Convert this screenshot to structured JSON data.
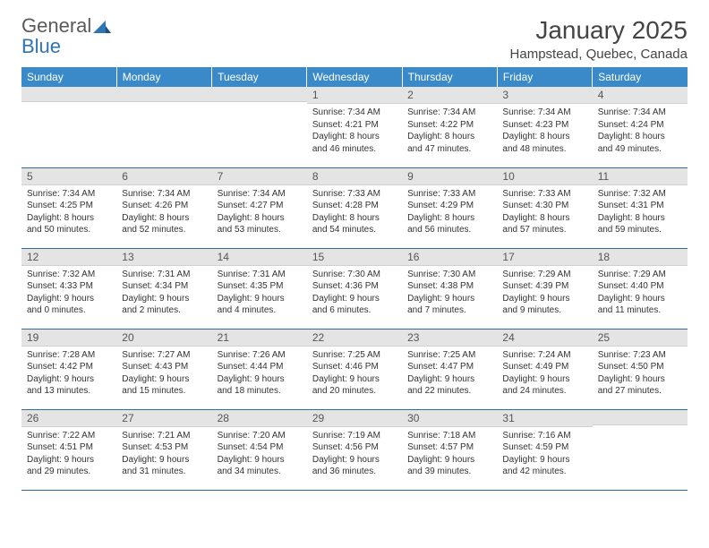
{
  "logo": {
    "word1": "General",
    "word2": "Blue"
  },
  "title": "January 2025",
  "location": "Hampstead, Quebec, Canada",
  "colors": {
    "header_bg": "#3a8ac9",
    "header_text": "#ffffff",
    "daynum_bg": "#e4e4e4",
    "row_border": "#2e6ca3",
    "body_text": "#333333",
    "page_bg": "#ffffff"
  },
  "typography": {
    "title_fontsize": 28,
    "location_fontsize": 15,
    "weekday_fontsize": 12,
    "daynum_fontsize": 12,
    "body_fontsize": 10
  },
  "weekdays": [
    "Sunday",
    "Monday",
    "Tuesday",
    "Wednesday",
    "Thursday",
    "Friday",
    "Saturday"
  ],
  "weeks": [
    [
      {
        "n": "",
        "sr": "",
        "ss": "",
        "dl": ""
      },
      {
        "n": "",
        "sr": "",
        "ss": "",
        "dl": ""
      },
      {
        "n": "",
        "sr": "",
        "ss": "",
        "dl": ""
      },
      {
        "n": "1",
        "sr": "Sunrise: 7:34 AM",
        "ss": "Sunset: 4:21 PM",
        "dl": "Daylight: 8 hours and 46 minutes."
      },
      {
        "n": "2",
        "sr": "Sunrise: 7:34 AM",
        "ss": "Sunset: 4:22 PM",
        "dl": "Daylight: 8 hours and 47 minutes."
      },
      {
        "n": "3",
        "sr": "Sunrise: 7:34 AM",
        "ss": "Sunset: 4:23 PM",
        "dl": "Daylight: 8 hours and 48 minutes."
      },
      {
        "n": "4",
        "sr": "Sunrise: 7:34 AM",
        "ss": "Sunset: 4:24 PM",
        "dl": "Daylight: 8 hours and 49 minutes."
      }
    ],
    [
      {
        "n": "5",
        "sr": "Sunrise: 7:34 AM",
        "ss": "Sunset: 4:25 PM",
        "dl": "Daylight: 8 hours and 50 minutes."
      },
      {
        "n": "6",
        "sr": "Sunrise: 7:34 AM",
        "ss": "Sunset: 4:26 PM",
        "dl": "Daylight: 8 hours and 52 minutes."
      },
      {
        "n": "7",
        "sr": "Sunrise: 7:34 AM",
        "ss": "Sunset: 4:27 PM",
        "dl": "Daylight: 8 hours and 53 minutes."
      },
      {
        "n": "8",
        "sr": "Sunrise: 7:33 AM",
        "ss": "Sunset: 4:28 PM",
        "dl": "Daylight: 8 hours and 54 minutes."
      },
      {
        "n": "9",
        "sr": "Sunrise: 7:33 AM",
        "ss": "Sunset: 4:29 PM",
        "dl": "Daylight: 8 hours and 56 minutes."
      },
      {
        "n": "10",
        "sr": "Sunrise: 7:33 AM",
        "ss": "Sunset: 4:30 PM",
        "dl": "Daylight: 8 hours and 57 minutes."
      },
      {
        "n": "11",
        "sr": "Sunrise: 7:32 AM",
        "ss": "Sunset: 4:31 PM",
        "dl": "Daylight: 8 hours and 59 minutes."
      }
    ],
    [
      {
        "n": "12",
        "sr": "Sunrise: 7:32 AM",
        "ss": "Sunset: 4:33 PM",
        "dl": "Daylight: 9 hours and 0 minutes."
      },
      {
        "n": "13",
        "sr": "Sunrise: 7:31 AM",
        "ss": "Sunset: 4:34 PM",
        "dl": "Daylight: 9 hours and 2 minutes."
      },
      {
        "n": "14",
        "sr": "Sunrise: 7:31 AM",
        "ss": "Sunset: 4:35 PM",
        "dl": "Daylight: 9 hours and 4 minutes."
      },
      {
        "n": "15",
        "sr": "Sunrise: 7:30 AM",
        "ss": "Sunset: 4:36 PM",
        "dl": "Daylight: 9 hours and 6 minutes."
      },
      {
        "n": "16",
        "sr": "Sunrise: 7:30 AM",
        "ss": "Sunset: 4:38 PM",
        "dl": "Daylight: 9 hours and 7 minutes."
      },
      {
        "n": "17",
        "sr": "Sunrise: 7:29 AM",
        "ss": "Sunset: 4:39 PM",
        "dl": "Daylight: 9 hours and 9 minutes."
      },
      {
        "n": "18",
        "sr": "Sunrise: 7:29 AM",
        "ss": "Sunset: 4:40 PM",
        "dl": "Daylight: 9 hours and 11 minutes."
      }
    ],
    [
      {
        "n": "19",
        "sr": "Sunrise: 7:28 AM",
        "ss": "Sunset: 4:42 PM",
        "dl": "Daylight: 9 hours and 13 minutes."
      },
      {
        "n": "20",
        "sr": "Sunrise: 7:27 AM",
        "ss": "Sunset: 4:43 PM",
        "dl": "Daylight: 9 hours and 15 minutes."
      },
      {
        "n": "21",
        "sr": "Sunrise: 7:26 AM",
        "ss": "Sunset: 4:44 PM",
        "dl": "Daylight: 9 hours and 18 minutes."
      },
      {
        "n": "22",
        "sr": "Sunrise: 7:25 AM",
        "ss": "Sunset: 4:46 PM",
        "dl": "Daylight: 9 hours and 20 minutes."
      },
      {
        "n": "23",
        "sr": "Sunrise: 7:25 AM",
        "ss": "Sunset: 4:47 PM",
        "dl": "Daylight: 9 hours and 22 minutes."
      },
      {
        "n": "24",
        "sr": "Sunrise: 7:24 AM",
        "ss": "Sunset: 4:49 PM",
        "dl": "Daylight: 9 hours and 24 minutes."
      },
      {
        "n": "25",
        "sr": "Sunrise: 7:23 AM",
        "ss": "Sunset: 4:50 PM",
        "dl": "Daylight: 9 hours and 27 minutes."
      }
    ],
    [
      {
        "n": "26",
        "sr": "Sunrise: 7:22 AM",
        "ss": "Sunset: 4:51 PM",
        "dl": "Daylight: 9 hours and 29 minutes."
      },
      {
        "n": "27",
        "sr": "Sunrise: 7:21 AM",
        "ss": "Sunset: 4:53 PM",
        "dl": "Daylight: 9 hours and 31 minutes."
      },
      {
        "n": "28",
        "sr": "Sunrise: 7:20 AM",
        "ss": "Sunset: 4:54 PM",
        "dl": "Daylight: 9 hours and 34 minutes."
      },
      {
        "n": "29",
        "sr": "Sunrise: 7:19 AM",
        "ss": "Sunset: 4:56 PM",
        "dl": "Daylight: 9 hours and 36 minutes."
      },
      {
        "n": "30",
        "sr": "Sunrise: 7:18 AM",
        "ss": "Sunset: 4:57 PM",
        "dl": "Daylight: 9 hours and 39 minutes."
      },
      {
        "n": "31",
        "sr": "Sunrise: 7:16 AM",
        "ss": "Sunset: 4:59 PM",
        "dl": "Daylight: 9 hours and 42 minutes."
      },
      {
        "n": "",
        "sr": "",
        "ss": "",
        "dl": ""
      }
    ]
  ]
}
